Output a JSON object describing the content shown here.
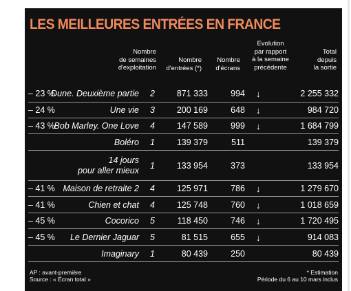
{
  "title": "LES MEILLEURES ENTRÉES EN FRANCE",
  "headers": {
    "weeks": "Nombre\nde semaines\nd'exploitation",
    "entries": "Nombre\nd'entrées (*)",
    "screens": "Nombre\nd'écrans",
    "evolution": "Evolution\npar rapport\nà la semaine\nprécédente",
    "total": "Total\ndepuis\nla sortie"
  },
  "rows": [
    {
      "film": "Dune. Deuxième partie",
      "weeks": "2",
      "entries": "871 333",
      "screens": "994",
      "arrow": "↓",
      "evolution": "– 23 %",
      "total": "2 255 332"
    },
    {
      "film": "Une vie",
      "weeks": "3",
      "entries": "200 169",
      "screens": "648",
      "arrow": "↓",
      "evolution": "– 24 %",
      "total": "984 720"
    },
    {
      "film": "Bob Marley. One Love",
      "weeks": "4",
      "entries": "147 589",
      "screens": "999",
      "arrow": "↓",
      "evolution": "– 43 %",
      "total": "1 684 799"
    },
    {
      "film": "Boléro",
      "weeks": "1",
      "entries": "139 379",
      "screens": "511",
      "arrow": "",
      "evolution": "",
      "total": "139 379"
    },
    {
      "film": "14 jours\npour aller mieux",
      "weeks": "1",
      "entries": "133 954",
      "screens": "373",
      "arrow": "",
      "evolution": "",
      "total": "133 954"
    },
    {
      "film": "Maison de retraite 2",
      "weeks": "4",
      "entries": "125 971",
      "screens": "786",
      "arrow": "↓",
      "evolution": "– 41 %",
      "total": "1 279 670"
    },
    {
      "film": "Chien et chat",
      "weeks": "4",
      "entries": "125 748",
      "screens": "760",
      "arrow": "↓",
      "evolution": "– 41 %",
      "total": "1 018 659"
    },
    {
      "film": "Cocorico",
      "weeks": "5",
      "entries": "118 450",
      "screens": "746",
      "arrow": "↓",
      "evolution": "– 45 %",
      "total": "1 720 495"
    },
    {
      "film": "Le Dernier Jaguar",
      "weeks": "5",
      "entries": "81 515",
      "screens": "655",
      "arrow": "↓",
      "evolution": "– 45 %",
      "total": "914 083"
    },
    {
      "film": "Imaginary",
      "weeks": "1",
      "entries": "80 439",
      "screens": "250",
      "arrow": "",
      "evolution": "",
      "total": "80 439"
    }
  ],
  "footer": {
    "ap": "AP : avant-première",
    "source": "Source : « Écran total »",
    "estimation": "* Estimation",
    "period": "Période du 6 au 10 mars inclus"
  }
}
